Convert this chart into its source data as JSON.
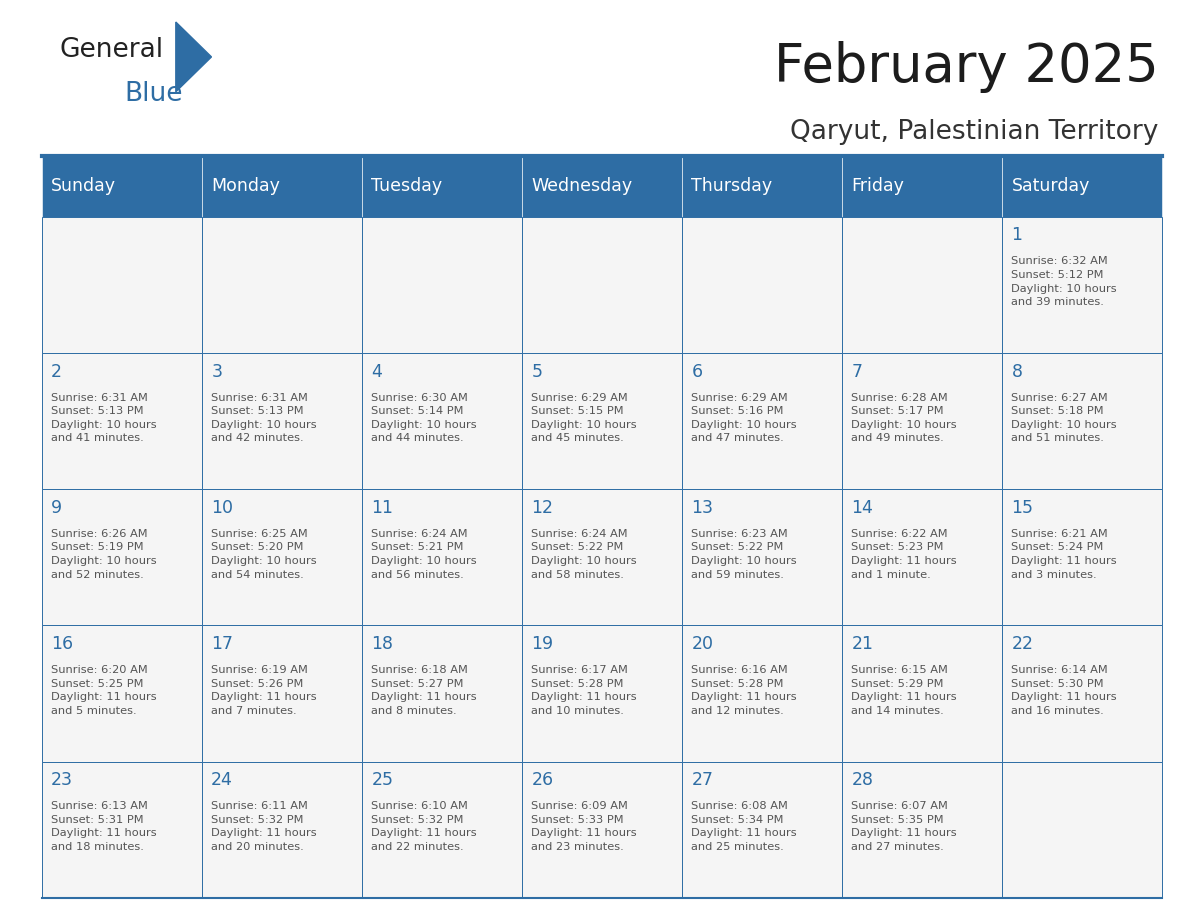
{
  "title": "February 2025",
  "subtitle": "Qaryut, Palestinian Territory",
  "header_bg": "#2E6DA4",
  "header_text_color": "#FFFFFF",
  "cell_bg": "#F5F5F5",
  "day_number_color": "#2E6DA4",
  "cell_text_color": "#555555",
  "border_color": "#2E6DA4",
  "days_of_week": [
    "Sunday",
    "Monday",
    "Tuesday",
    "Wednesday",
    "Thursday",
    "Friday",
    "Saturday"
  ],
  "calendar": [
    [
      null,
      null,
      null,
      null,
      null,
      null,
      {
        "day": 1,
        "sunrise": "6:32 AM",
        "sunset": "5:12 PM",
        "daylight": "10 hours\nand 39 minutes."
      }
    ],
    [
      {
        "day": 2,
        "sunrise": "6:31 AM",
        "sunset": "5:13 PM",
        "daylight": "10 hours\nand 41 minutes."
      },
      {
        "day": 3,
        "sunrise": "6:31 AM",
        "sunset": "5:13 PM",
        "daylight": "10 hours\nand 42 minutes."
      },
      {
        "day": 4,
        "sunrise": "6:30 AM",
        "sunset": "5:14 PM",
        "daylight": "10 hours\nand 44 minutes."
      },
      {
        "day": 5,
        "sunrise": "6:29 AM",
        "sunset": "5:15 PM",
        "daylight": "10 hours\nand 45 minutes."
      },
      {
        "day": 6,
        "sunrise": "6:29 AM",
        "sunset": "5:16 PM",
        "daylight": "10 hours\nand 47 minutes."
      },
      {
        "day": 7,
        "sunrise": "6:28 AM",
        "sunset": "5:17 PM",
        "daylight": "10 hours\nand 49 minutes."
      },
      {
        "day": 8,
        "sunrise": "6:27 AM",
        "sunset": "5:18 PM",
        "daylight": "10 hours\nand 51 minutes."
      }
    ],
    [
      {
        "day": 9,
        "sunrise": "6:26 AM",
        "sunset": "5:19 PM",
        "daylight": "10 hours\nand 52 minutes."
      },
      {
        "day": 10,
        "sunrise": "6:25 AM",
        "sunset": "5:20 PM",
        "daylight": "10 hours\nand 54 minutes."
      },
      {
        "day": 11,
        "sunrise": "6:24 AM",
        "sunset": "5:21 PM",
        "daylight": "10 hours\nand 56 minutes."
      },
      {
        "day": 12,
        "sunrise": "6:24 AM",
        "sunset": "5:22 PM",
        "daylight": "10 hours\nand 58 minutes."
      },
      {
        "day": 13,
        "sunrise": "6:23 AM",
        "sunset": "5:22 PM",
        "daylight": "10 hours\nand 59 minutes."
      },
      {
        "day": 14,
        "sunrise": "6:22 AM",
        "sunset": "5:23 PM",
        "daylight": "11 hours\nand 1 minute."
      },
      {
        "day": 15,
        "sunrise": "6:21 AM",
        "sunset": "5:24 PM",
        "daylight": "11 hours\nand 3 minutes."
      }
    ],
    [
      {
        "day": 16,
        "sunrise": "6:20 AM",
        "sunset": "5:25 PM",
        "daylight": "11 hours\nand 5 minutes."
      },
      {
        "day": 17,
        "sunrise": "6:19 AM",
        "sunset": "5:26 PM",
        "daylight": "11 hours\nand 7 minutes."
      },
      {
        "day": 18,
        "sunrise": "6:18 AM",
        "sunset": "5:27 PM",
        "daylight": "11 hours\nand 8 minutes."
      },
      {
        "day": 19,
        "sunrise": "6:17 AM",
        "sunset": "5:28 PM",
        "daylight": "11 hours\nand 10 minutes."
      },
      {
        "day": 20,
        "sunrise": "6:16 AM",
        "sunset": "5:28 PM",
        "daylight": "11 hours\nand 12 minutes."
      },
      {
        "day": 21,
        "sunrise": "6:15 AM",
        "sunset": "5:29 PM",
        "daylight": "11 hours\nand 14 minutes."
      },
      {
        "day": 22,
        "sunrise": "6:14 AM",
        "sunset": "5:30 PM",
        "daylight": "11 hours\nand 16 minutes."
      }
    ],
    [
      {
        "day": 23,
        "sunrise": "6:13 AM",
        "sunset": "5:31 PM",
        "daylight": "11 hours\nand 18 minutes."
      },
      {
        "day": 24,
        "sunrise": "6:11 AM",
        "sunset": "5:32 PM",
        "daylight": "11 hours\nand 20 minutes."
      },
      {
        "day": 25,
        "sunrise": "6:10 AM",
        "sunset": "5:32 PM",
        "daylight": "11 hours\nand 22 minutes."
      },
      {
        "day": 26,
        "sunrise": "6:09 AM",
        "sunset": "5:33 PM",
        "daylight": "11 hours\nand 23 minutes."
      },
      {
        "day": 27,
        "sunrise": "6:08 AM",
        "sunset": "5:34 PM",
        "daylight": "11 hours\nand 25 minutes."
      },
      {
        "day": 28,
        "sunrise": "6:07 AM",
        "sunset": "5:35 PM",
        "daylight": "11 hours\nand 27 minutes."
      },
      null
    ]
  ]
}
